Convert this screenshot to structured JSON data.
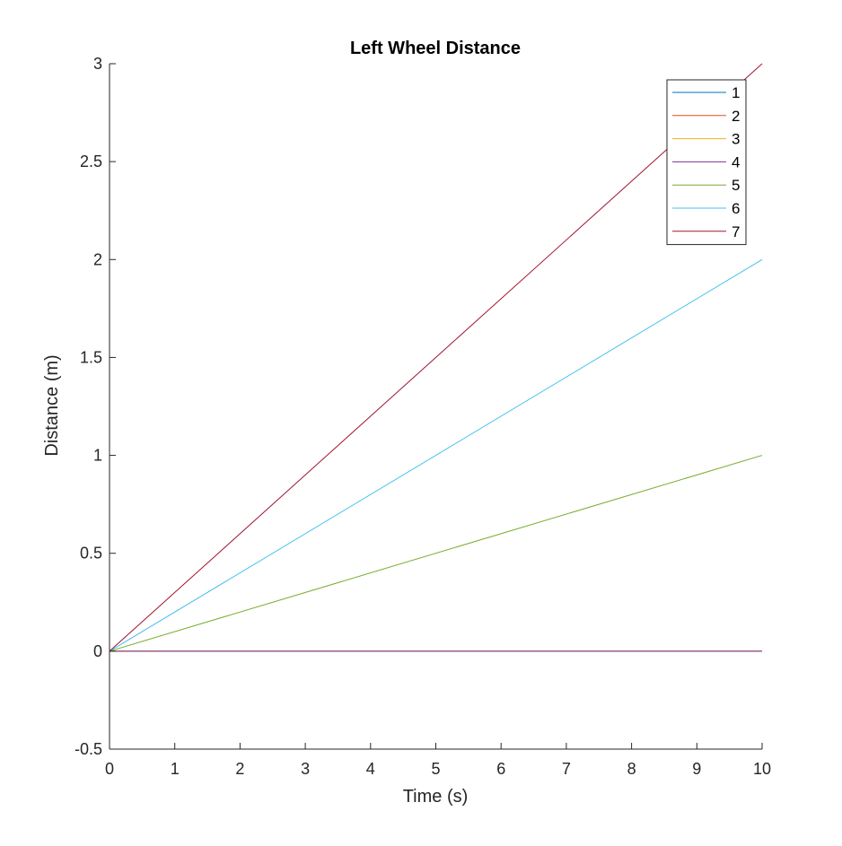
{
  "chart_data": {
    "type": "line",
    "title": "Left Wheel Distance",
    "xlabel": "Time (s)",
    "ylabel": "Distance (m)",
    "xlim": [
      0,
      10
    ],
    "ylim": [
      -0.5,
      3
    ],
    "xticks": [
      0,
      1,
      2,
      3,
      4,
      5,
      6,
      7,
      8,
      9,
      10
    ],
    "xtick_labels": [
      "0",
      "1",
      "2",
      "3",
      "4",
      "5",
      "6",
      "7",
      "8",
      "9",
      "10"
    ],
    "yticks": [
      -0.5,
      0,
      0.5,
      1,
      1.5,
      2,
      2.5,
      3
    ],
    "ytick_labels": [
      "-0.5",
      "0",
      "0.5",
      "1",
      "1.5",
      "2",
      "2.5",
      "3"
    ],
    "grid": false,
    "legend_position": "top-right",
    "series": [
      {
        "name": "1",
        "color": "#0072BD",
        "x": [
          0,
          10
        ],
        "y": [
          0,
          0
        ]
      },
      {
        "name": "2",
        "color": "#D95319",
        "x": [
          0,
          10
        ],
        "y": [
          0,
          0
        ]
      },
      {
        "name": "3",
        "color": "#EDB120",
        "x": [
          0,
          10
        ],
        "y": [
          0,
          0
        ]
      },
      {
        "name": "4",
        "color": "#7E2F8E",
        "x": [
          0,
          10
        ],
        "y": [
          0,
          0
        ]
      },
      {
        "name": "5",
        "color": "#77AC30",
        "x": [
          0,
          10
        ],
        "y": [
          0,
          1
        ]
      },
      {
        "name": "6",
        "color": "#4DBEEE",
        "x": [
          0,
          10
        ],
        "y": [
          0,
          2
        ]
      },
      {
        "name": "7",
        "color": "#A2142F",
        "x": [
          0,
          10
        ],
        "y": [
          0,
          3
        ]
      }
    ]
  }
}
